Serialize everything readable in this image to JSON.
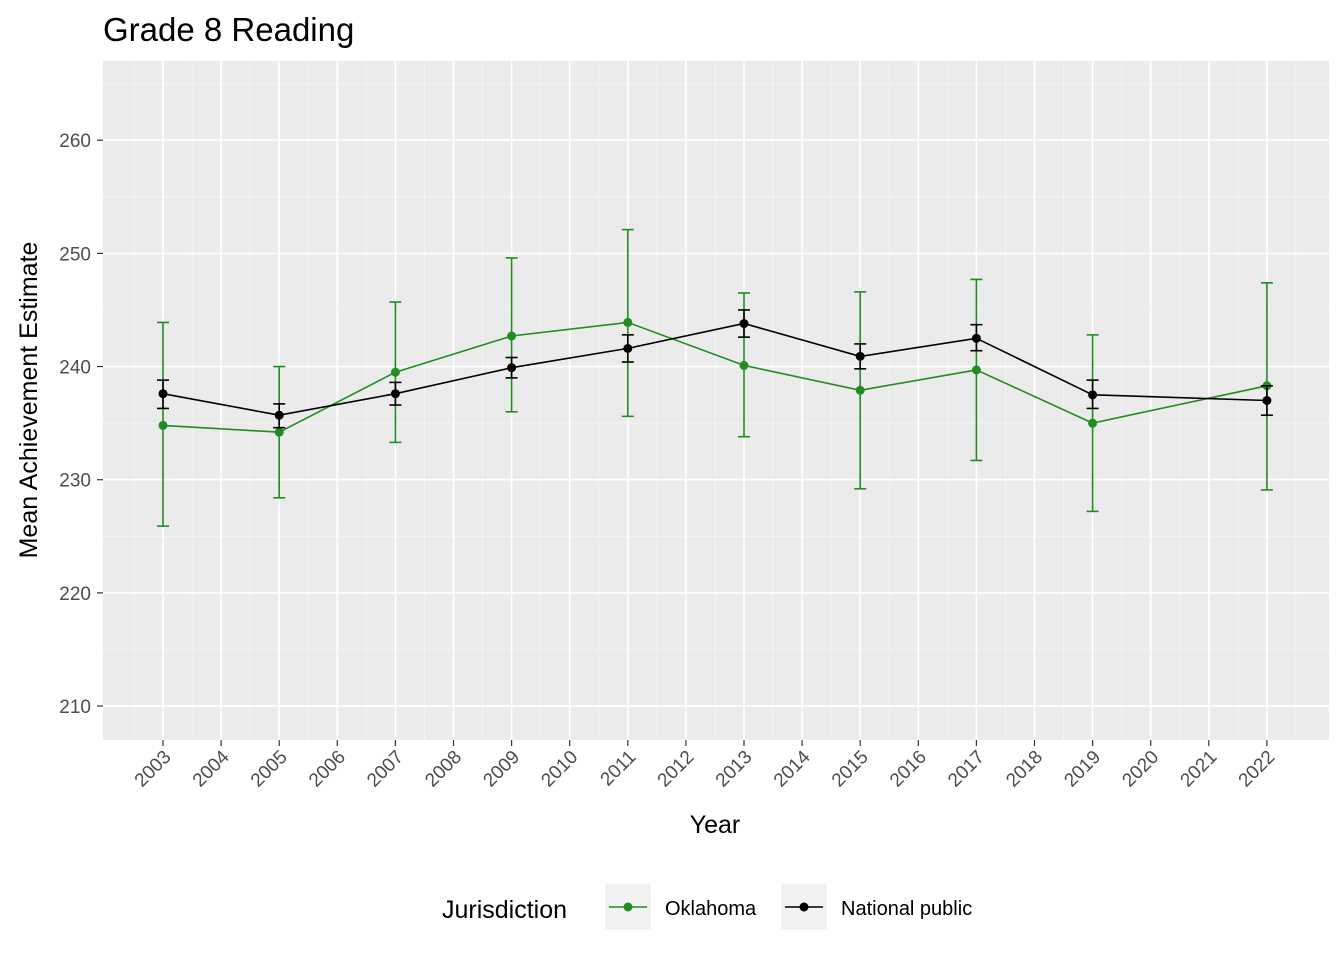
{
  "chart_data": {
    "type": "line",
    "title": "Grade 8 Reading",
    "xlabel": "Year",
    "ylabel": "Mean Achievement Estimate",
    "x_categories": [
      "2003",
      "2004",
      "2005",
      "2006",
      "2007",
      "2008",
      "2009",
      "2010",
      "2011",
      "2012",
      "2013",
      "2014",
      "2015",
      "2016",
      "2017",
      "2018",
      "2019",
      "2020",
      "2021",
      "2022"
    ],
    "ylim": [
      207,
      267
    ],
    "yticks": [
      210,
      220,
      230,
      240,
      250,
      260
    ],
    "grid": true,
    "legend": {
      "title": "Jurisdiction",
      "position": "bottom"
    },
    "series": [
      {
        "name": "Oklahoma",
        "color": "#228b22",
        "points": [
          {
            "x": "2003",
            "y": 234.8,
            "lo": 225.9,
            "hi": 243.9
          },
          {
            "x": "2005",
            "y": 234.2,
            "lo": 228.4,
            "hi": 240.0
          },
          {
            "x": "2007",
            "y": 239.5,
            "lo": 233.3,
            "hi": 245.7
          },
          {
            "x": "2009",
            "y": 242.7,
            "lo": 236.0,
            "hi": 249.6
          },
          {
            "x": "2011",
            "y": 243.9,
            "lo": 235.6,
            "hi": 252.1
          },
          {
            "x": "2013",
            "y": 240.1,
            "lo": 233.8,
            "hi": 246.5
          },
          {
            "x": "2015",
            "y": 237.9,
            "lo": 229.2,
            "hi": 246.6
          },
          {
            "x": "2017",
            "y": 239.7,
            "lo": 231.7,
            "hi": 247.7
          },
          {
            "x": "2019",
            "y": 235.0,
            "lo": 227.2,
            "hi": 242.8
          },
          {
            "x": "2022",
            "y": 238.3,
            "lo": 229.1,
            "hi": 247.4
          }
        ]
      },
      {
        "name": "National public",
        "color": "#000000",
        "points": [
          {
            "x": "2003",
            "y": 237.6,
            "lo": 236.3,
            "hi": 238.8
          },
          {
            "x": "2005",
            "y": 235.7,
            "lo": 234.6,
            "hi": 236.7
          },
          {
            "x": "2007",
            "y": 237.6,
            "lo": 236.6,
            "hi": 238.6
          },
          {
            "x": "2009",
            "y": 239.9,
            "lo": 239.0,
            "hi": 240.8
          },
          {
            "x": "2011",
            "y": 241.6,
            "lo": 240.4,
            "hi": 242.8
          },
          {
            "x": "2013",
            "y": 243.8,
            "lo": 242.6,
            "hi": 245.0
          },
          {
            "x": "2015",
            "y": 240.9,
            "lo": 239.8,
            "hi": 242.0
          },
          {
            "x": "2017",
            "y": 242.5,
            "lo": 241.4,
            "hi": 243.7
          },
          {
            "x": "2019",
            "y": 237.5,
            "lo": 236.3,
            "hi": 238.8
          },
          {
            "x": "2022",
            "y": 237.0,
            "lo": 235.7,
            "hi": 238.3
          }
        ]
      }
    ]
  }
}
